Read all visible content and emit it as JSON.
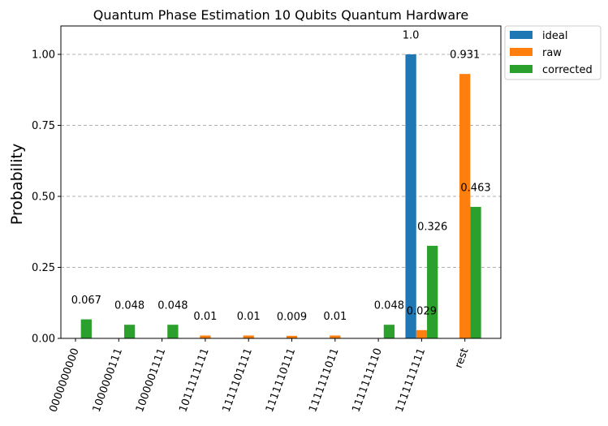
{
  "chart_data": {
    "type": "bar",
    "title": "Quantum Phase Estimation 10 Qubits Quantum Hardware",
    "xlabel": "",
    "ylabel": "Probability",
    "ylim": [
      0,
      1.1
    ],
    "yticks": [
      "0.00",
      "0.25",
      "0.50",
      "0.75",
      "1.00"
    ],
    "grid": "horizontal dashed",
    "legend_position": "outside top-right",
    "categories": [
      "0000000000",
      "1000000111",
      "1000001111",
      "1011111111",
      "1111101111",
      "1111110111",
      "1111111011",
      "1111111110",
      "1111111111",
      "rest"
    ],
    "series": [
      {
        "name": "ideal",
        "color": "#1f77b4",
        "values": [
          0,
          0,
          0,
          0,
          0,
          0,
          0,
          0,
          1.0,
          0
        ],
        "labels": [
          "",
          "",
          "",
          "",
          "",
          "",
          "",
          "",
          "1.0",
          ""
        ]
      },
      {
        "name": "raw",
        "color": "#ff7f0e",
        "values": [
          0,
          0,
          0,
          0.01,
          0.01,
          0.009,
          0.01,
          0,
          0.029,
          0.931
        ],
        "labels": [
          "",
          "",
          "",
          "0.01",
          "0.01",
          "0.009",
          "0.01",
          "",
          "0.029",
          "0.931"
        ]
      },
      {
        "name": "corrected",
        "color": "#2ca02c",
        "values": [
          0.067,
          0.048,
          0.048,
          0,
          0,
          0,
          0,
          0.048,
          0.326,
          0.463
        ],
        "labels": [
          "0.067",
          "0.048",
          "0.048",
          "",
          "",
          "",
          "",
          "0.048",
          "0.326",
          "0.463"
        ]
      }
    ]
  }
}
